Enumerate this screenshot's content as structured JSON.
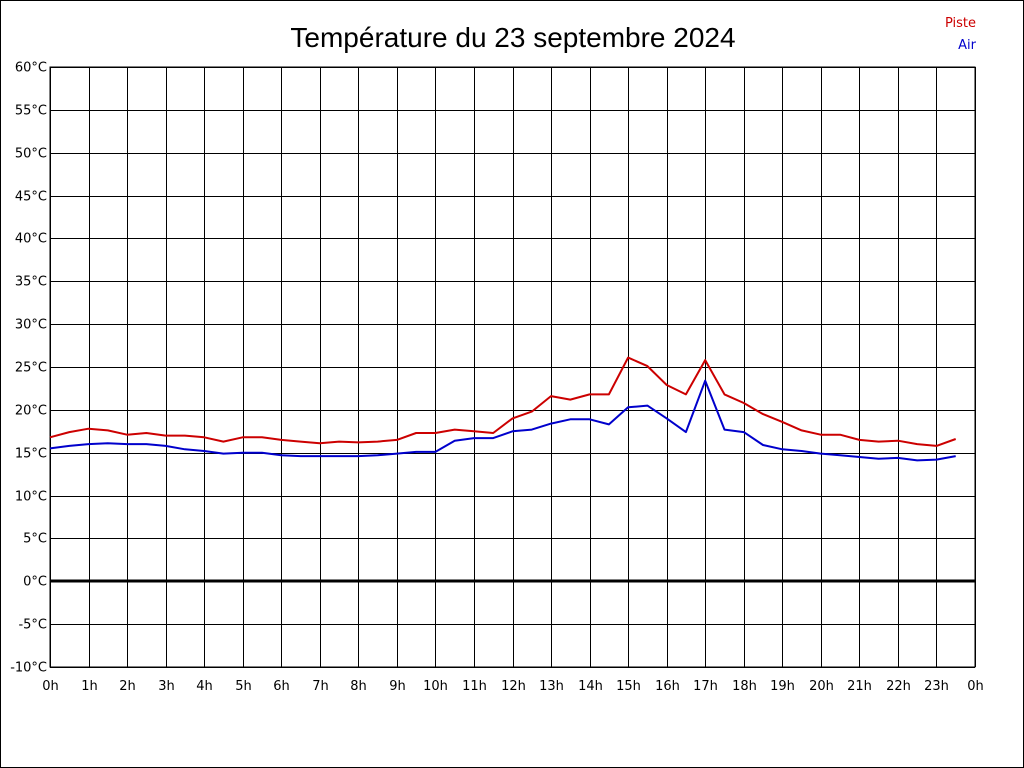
{
  "chart_data": {
    "type": "line",
    "title": "Température du 23 septembre 2024",
    "xlabel": "",
    "ylabel": "",
    "x_unit": "hour",
    "xlim": [
      0,
      24
    ],
    "ylim": [
      -10,
      60
    ],
    "y_ticks": [
      -10,
      -5,
      0,
      5,
      10,
      15,
      20,
      25,
      30,
      35,
      40,
      45,
      50,
      55,
      60
    ],
    "y_tick_labels": [
      "-10°C",
      "-5°C",
      "0°C",
      "5°C",
      "10°C",
      "15°C",
      "20°C",
      "25°C",
      "30°C",
      "35°C",
      "40°C",
      "45°C",
      "50°C",
      "55°C",
      "60°C"
    ],
    "x_ticks": [
      0,
      1,
      2,
      3,
      4,
      5,
      6,
      7,
      8,
      9,
      10,
      11,
      12,
      13,
      14,
      15,
      16,
      17,
      18,
      19,
      20,
      21,
      22,
      23,
      24
    ],
    "x_tick_labels": [
      "0h",
      "1h",
      "2h",
      "3h",
      "4h",
      "5h",
      "6h",
      "7h",
      "8h",
      "9h",
      "10h",
      "11h",
      "12h",
      "13h",
      "14h",
      "15h",
      "16h",
      "17h",
      "18h",
      "19h",
      "20h",
      "21h",
      "22h",
      "23h",
      "0h"
    ],
    "grid": true,
    "zero_line": true,
    "legend_position": "top-right",
    "x": [
      0,
      0.5,
      1,
      1.5,
      2,
      2.5,
      3,
      3.5,
      4,
      4.5,
      5,
      5.5,
      6,
      6.5,
      7,
      7.5,
      8,
      8.5,
      9,
      9.5,
      10,
      10.5,
      11,
      11.5,
      12,
      12.5,
      13,
      13.5,
      14,
      14.5,
      15,
      15.5,
      16,
      16.5,
      17,
      17.5,
      18,
      18.5,
      19,
      19.5,
      20,
      20.5,
      21,
      21.5,
      22,
      22.5,
      23,
      23.5
    ],
    "series": [
      {
        "name": "Piste",
        "color": "#cc0000",
        "values": [
          16.8,
          17.4,
          17.8,
          17.6,
          17.1,
          17.3,
          17.0,
          17.0,
          16.8,
          16.3,
          16.8,
          16.8,
          16.5,
          16.3,
          16.1,
          16.3,
          16.2,
          16.3,
          16.5,
          17.3,
          17.3,
          17.7,
          17.5,
          17.3,
          19.0,
          19.8,
          21.6,
          21.2,
          21.8,
          21.8,
          26.1,
          25.1,
          22.9,
          21.8,
          25.8,
          21.8,
          20.8,
          19.5,
          18.6,
          17.6,
          17.1,
          17.1,
          16.5,
          16.3,
          16.4,
          16.0,
          15.8,
          16.6
        ]
      },
      {
        "name": "Air",
        "color": "#0000cc",
        "values": [
          15.5,
          15.8,
          16.0,
          16.1,
          16.0,
          16.0,
          15.8,
          15.4,
          15.2,
          14.9,
          15.0,
          15.0,
          14.7,
          14.6,
          14.6,
          14.6,
          14.6,
          14.7,
          14.9,
          15.1,
          15.1,
          16.4,
          16.7,
          16.7,
          17.5,
          17.7,
          18.4,
          18.9,
          18.9,
          18.3,
          20.3,
          20.5,
          19.0,
          17.4,
          23.4,
          17.7,
          17.4,
          15.9,
          15.4,
          15.2,
          14.9,
          14.7,
          14.5,
          14.3,
          14.4,
          14.1,
          14.2,
          14.6
        ]
      }
    ]
  }
}
